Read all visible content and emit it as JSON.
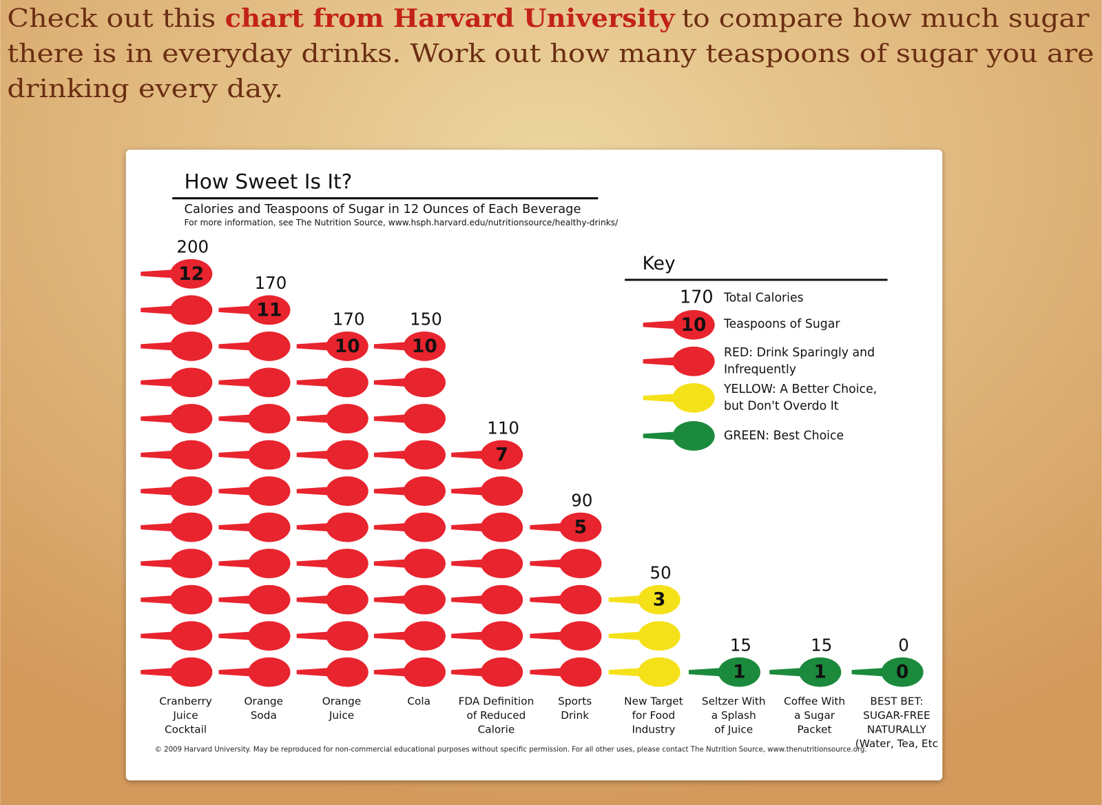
{
  "intro": {
    "text_1": "Check out this",
    "link": "chart from Harvard University",
    "text_2": "to compare how much sugar",
    "text_3": "there is in everyday drinks. Work out how many teaspoons of sugar you are",
    "text_4": "drinking every day."
  },
  "chart_data": {
    "type": "pictograph",
    "title": "How Sweet Is It?",
    "subtitle": "Calories and Teaspoons of Sugar in 12 Ounces of Each Beverage",
    "note": "For more information, see The Nutrition Source, www.hsph.harvard.edu/nutritionsource/healthy-drinks/",
    "footer": "© 2009 Harvard University. May be reproduced for non-commercial educational purposes without specific permission. For all other uses, please contact The Nutrition Source, www.thenutritionsource.org.",
    "categories": [
      [
        "Cranberry",
        "Juice",
        "Cocktail"
      ],
      [
        "Orange",
        "Soda"
      ],
      [
        "Orange",
        "Juice"
      ],
      [
        "Cola"
      ],
      [
        "FDA Definition",
        "of Reduced",
        "Calorie"
      ],
      [
        "Sports",
        "Drink"
      ],
      [
        "New Target",
        "for Food",
        "Industry"
      ],
      [
        "Seltzer With",
        "a Splash",
        "of Juice"
      ],
      [
        "Coffee With",
        "a Sugar",
        "Packet"
      ],
      [
        "BEST BET:",
        "SUGAR-FREE",
        "NATURALLY",
        "(Water, Tea, Etc"
      ]
    ],
    "colors": [
      "#e8242e",
      "#e8242e",
      "#e8242e",
      "#e8242e",
      "#e8242e",
      "#e8242e",
      "#f5e11a",
      "#1b8a3c",
      "#1b8a3c",
      "#1b8a3c"
    ],
    "series": [
      {
        "name": "Teaspoons of Sugar",
        "values": [
          12,
          11,
          10,
          10,
          7,
          5,
          3,
          1,
          1,
          0
        ]
      },
      {
        "name": "Total Calories",
        "values": [
          200,
          170,
          170,
          150,
          110,
          90,
          50,
          15,
          15,
          0
        ]
      }
    ],
    "key": {
      "title": "Key",
      "example_calories": 170,
      "example_teaspoons": 10,
      "items": [
        {
          "lines": [
            "RED: Drink Sparingly and",
            "Infrequently"
          ],
          "color": "#e8242e"
        },
        {
          "lines": [
            "YELLOW: A Better Choice,",
            "but Don't Overdo It"
          ],
          "color": "#f5e11a"
        },
        {
          "lines": [
            "GREEN: Best Choice"
          ],
          "color": "#1b8a3c"
        }
      ]
    }
  }
}
